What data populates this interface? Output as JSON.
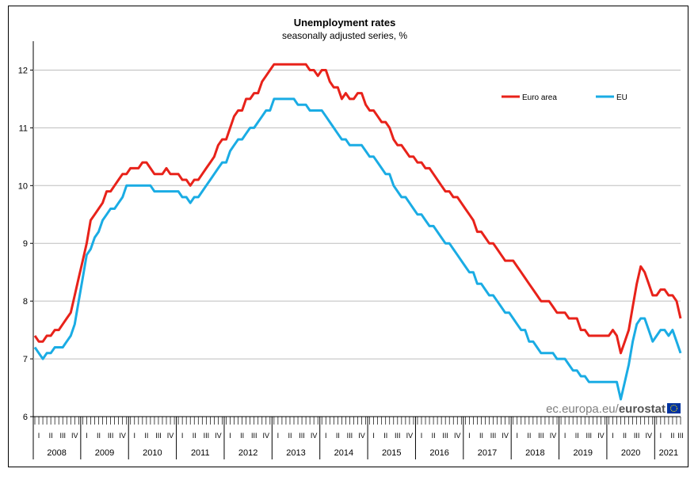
{
  "chart_data": {
    "type": "line",
    "title": "Unemployment rates",
    "subtitle": "seasonally adjusted series, %",
    "ylim": [
      6,
      12.5
    ],
    "yticks": [
      6,
      7,
      8,
      9,
      10,
      11,
      12
    ],
    "quarter_labels": [
      "I",
      "II",
      "III",
      "IV"
    ],
    "years": [
      "2008",
      "2009",
      "2010",
      "2011",
      "2012",
      "2013",
      "2014",
      "2015",
      "2016",
      "2017",
      "2018",
      "2019",
      "2020",
      "2021"
    ],
    "grid": "horizontal",
    "legend_position": "top-right",
    "series": [
      {
        "name": "Euro area",
        "color": "#e8221a",
        "values": [
          7.4,
          7.3,
          7.3,
          7.4,
          7.4,
          7.5,
          7.5,
          7.6,
          7.7,
          7.8,
          8.1,
          8.4,
          8.7,
          9.0,
          9.4,
          9.5,
          9.6,
          9.7,
          9.9,
          9.9,
          10.0,
          10.1,
          10.2,
          10.2,
          10.3,
          10.3,
          10.3,
          10.4,
          10.4,
          10.3,
          10.2,
          10.2,
          10.2,
          10.3,
          10.2,
          10.2,
          10.2,
          10.1,
          10.1,
          10.0,
          10.1,
          10.1,
          10.2,
          10.3,
          10.4,
          10.5,
          10.7,
          10.8,
          10.8,
          11.0,
          11.2,
          11.3,
          11.3,
          11.5,
          11.5,
          11.6,
          11.6,
          11.8,
          11.9,
          12.0,
          12.1,
          12.1,
          12.1,
          12.1,
          12.1,
          12.1,
          12.1,
          12.1,
          12.1,
          12.0,
          12.0,
          11.9,
          12.0,
          12.0,
          11.8,
          11.7,
          11.7,
          11.5,
          11.6,
          11.5,
          11.5,
          11.6,
          11.6,
          11.4,
          11.3,
          11.3,
          11.2,
          11.1,
          11.1,
          11.0,
          10.8,
          10.7,
          10.7,
          10.6,
          10.5,
          10.5,
          10.4,
          10.4,
          10.3,
          10.3,
          10.2,
          10.1,
          10.0,
          9.9,
          9.9,
          9.8,
          9.8,
          9.7,
          9.6,
          9.5,
          9.4,
          9.2,
          9.2,
          9.1,
          9.0,
          9.0,
          8.9,
          8.8,
          8.7,
          8.7,
          8.7,
          8.6,
          8.5,
          8.4,
          8.3,
          8.2,
          8.1,
          8.0,
          8.0,
          8.0,
          7.9,
          7.8,
          7.8,
          7.8,
          7.7,
          7.7,
          7.7,
          7.5,
          7.5,
          7.4,
          7.4,
          7.4,
          7.4,
          7.4,
          7.4,
          7.5,
          7.4,
          7.1,
          7.3,
          7.5,
          7.9,
          8.3,
          8.6,
          8.5,
          8.3,
          8.1,
          8.1,
          8.2,
          8.2,
          8.1,
          8.1,
          8.0,
          7.7
        ]
      },
      {
        "name": "EU",
        "color": "#1aace4",
        "values": [
          7.2,
          7.1,
          7.0,
          7.1,
          7.1,
          7.2,
          7.2,
          7.2,
          7.3,
          7.4,
          7.6,
          8.0,
          8.4,
          8.8,
          8.9,
          9.1,
          9.2,
          9.4,
          9.5,
          9.6,
          9.6,
          9.7,
          9.8,
          10.0,
          10.0,
          10.0,
          10.0,
          10.0,
          10.0,
          10.0,
          9.9,
          9.9,
          9.9,
          9.9,
          9.9,
          9.9,
          9.9,
          9.8,
          9.8,
          9.7,
          9.8,
          9.8,
          9.9,
          10.0,
          10.1,
          10.2,
          10.3,
          10.4,
          10.4,
          10.6,
          10.7,
          10.8,
          10.8,
          10.9,
          11.0,
          11.0,
          11.1,
          11.2,
          11.3,
          11.3,
          11.5,
          11.5,
          11.5,
          11.5,
          11.5,
          11.5,
          11.4,
          11.4,
          11.4,
          11.3,
          11.3,
          11.3,
          11.3,
          11.2,
          11.1,
          11.0,
          10.9,
          10.8,
          10.8,
          10.7,
          10.7,
          10.7,
          10.7,
          10.6,
          10.5,
          10.5,
          10.4,
          10.3,
          10.2,
          10.2,
          10.0,
          9.9,
          9.8,
          9.8,
          9.7,
          9.6,
          9.5,
          9.5,
          9.4,
          9.3,
          9.3,
          9.2,
          9.1,
          9.0,
          9.0,
          8.9,
          8.8,
          8.7,
          8.6,
          8.5,
          8.5,
          8.3,
          8.3,
          8.2,
          8.1,
          8.1,
          8.0,
          7.9,
          7.8,
          7.8,
          7.7,
          7.6,
          7.5,
          7.5,
          7.3,
          7.3,
          7.2,
          7.1,
          7.1,
          7.1,
          7.1,
          7.0,
          7.0,
          7.0,
          6.9,
          6.8,
          6.8,
          6.7,
          6.7,
          6.6,
          6.6,
          6.6,
          6.6,
          6.6,
          6.6,
          6.6,
          6.6,
          6.3,
          6.6,
          6.9,
          7.3,
          7.6,
          7.7,
          7.7,
          7.5,
          7.3,
          7.4,
          7.5,
          7.5,
          7.4,
          7.5,
          7.3,
          7.1
        ]
      }
    ]
  },
  "watermark": {
    "site": "ec.europa.eu/",
    "brand": "eurostat",
    "flag_color": "#0033a0"
  }
}
